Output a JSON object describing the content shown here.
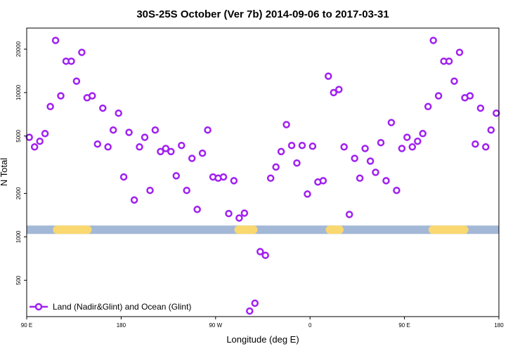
{
  "chart_data": {
    "type": "scatter",
    "title": "30S-25S October (Ver 7b)   2014-09-06 to 2017-03-31",
    "xlabel": "Longitude (deg E)",
    "ylabel": "N Total",
    "x_scale": "linear",
    "y_scale": "log",
    "xlim": [
      90,
      540
    ],
    "ylim": [
      280,
      28000
    ],
    "x_ticks": [
      {
        "value": 90,
        "label": "90 E"
      },
      {
        "value": 180,
        "label": "180"
      },
      {
        "value": 270,
        "label": "90 W"
      },
      {
        "value": 360,
        "label": "0"
      },
      {
        "value": 450,
        "label": "90 E"
      },
      {
        "value": 540,
        "label": "180"
      }
    ],
    "y_ticks": [
      {
        "value": 500,
        "label": "500"
      },
      {
        "value": 1000,
        "label": "1000"
      },
      {
        "value": 2000,
        "label": "2000"
      },
      {
        "value": 5000,
        "label": "5000"
      },
      {
        "value": 10000,
        "label": "10000"
      },
      {
        "value": 20000,
        "label": "20000"
      }
    ],
    "grid": false,
    "legend_position": "bottom-left",
    "land_band": {
      "y_value": 1120,
      "ocean_color": "#a3b8d6",
      "land_color": "#fad870",
      "land_ranges": [
        [
          115,
          152
        ],
        [
          288,
          310
        ],
        [
          375,
          392
        ],
        [
          473,
          511
        ]
      ]
    },
    "series": [
      {
        "name": "Land (Nadir&Glint) and Ocean (Glint)",
        "color": "#a020f0",
        "points": [
          [
            92.5,
            4900
          ],
          [
            97.5,
            4200
          ],
          [
            102.5,
            4600
          ],
          [
            107.5,
            5200
          ],
          [
            112.5,
            8000
          ],
          [
            117.5,
            23000
          ],
          [
            122.5,
            9500
          ],
          [
            127.5,
            16500
          ],
          [
            132.5,
            16500
          ],
          [
            137.5,
            12000
          ],
          [
            142.5,
            19000
          ],
          [
            147.5,
            9200
          ],
          [
            152.5,
            9500
          ],
          [
            157.5,
            4400
          ],
          [
            162.5,
            7800
          ],
          [
            167.5,
            4200
          ],
          [
            172.5,
            5500
          ],
          [
            177.5,
            7200
          ],
          [
            182.5,
            2600
          ],
          [
            187.5,
            5300
          ],
          [
            192.5,
            1800
          ],
          [
            197.5,
            4200
          ],
          [
            202.5,
            4900
          ],
          [
            207.5,
            2100
          ],
          [
            212.5,
            5500
          ],
          [
            217.5,
            3900
          ],
          [
            222.5,
            4100
          ],
          [
            227.5,
            3900
          ],
          [
            232.5,
            2650
          ],
          [
            237.5,
            4300
          ],
          [
            242.5,
            2100
          ],
          [
            247.5,
            3500
          ],
          [
            252.5,
            1550
          ],
          [
            257.5,
            3800
          ],
          [
            262.5,
            5500
          ],
          [
            267.5,
            2600
          ],
          [
            272.5,
            2550
          ],
          [
            277.5,
            2600
          ],
          [
            282.5,
            1450
          ],
          [
            287.5,
            2450
          ],
          [
            292.5,
            1350
          ],
          [
            297.5,
            1460
          ],
          [
            302.5,
            306
          ],
          [
            307.5,
            347
          ],
          [
            312.5,
            790
          ],
          [
            317.5,
            745
          ],
          [
            322.5,
            2550
          ],
          [
            327.5,
            3050
          ],
          [
            332.5,
            3900
          ],
          [
            337.5,
            6000
          ],
          [
            342.5,
            4300
          ],
          [
            347.5,
            3250
          ],
          [
            352.5,
            4300
          ],
          [
            357.5,
            1980
          ],
          [
            362.5,
            4250
          ],
          [
            367.5,
            2400
          ],
          [
            372.5,
            2450
          ],
          [
            377.5,
            13000
          ],
          [
            382.5,
            10000
          ],
          [
            387.5,
            10500
          ],
          [
            392.5,
            4200
          ],
          [
            397.5,
            1430
          ],
          [
            402.5,
            3500
          ],
          [
            407.5,
            2550
          ],
          [
            412.5,
            4100
          ],
          [
            417.5,
            3350
          ],
          [
            422.5,
            2800
          ],
          [
            427.5,
            4500
          ],
          [
            432.5,
            2450
          ],
          [
            437.5,
            6200
          ],
          [
            442.5,
            2100
          ],
          [
            447.5,
            4100
          ],
          [
            452.5,
            4900
          ],
          [
            457.5,
            4200
          ],
          [
            462.5,
            4600
          ],
          [
            467.5,
            5200
          ],
          [
            472.5,
            8000
          ],
          [
            477.5,
            23000
          ],
          [
            482.5,
            9500
          ],
          [
            487.5,
            16500
          ],
          [
            492.5,
            16500
          ],
          [
            497.5,
            12000
          ],
          [
            502.5,
            19000
          ],
          [
            507.5,
            9200
          ],
          [
            512.5,
            9500
          ],
          [
            517.5,
            4400
          ],
          [
            522.5,
            7800
          ],
          [
            527.5,
            4200
          ],
          [
            532.5,
            5500
          ],
          [
            537.5,
            7200
          ]
        ]
      }
    ]
  }
}
